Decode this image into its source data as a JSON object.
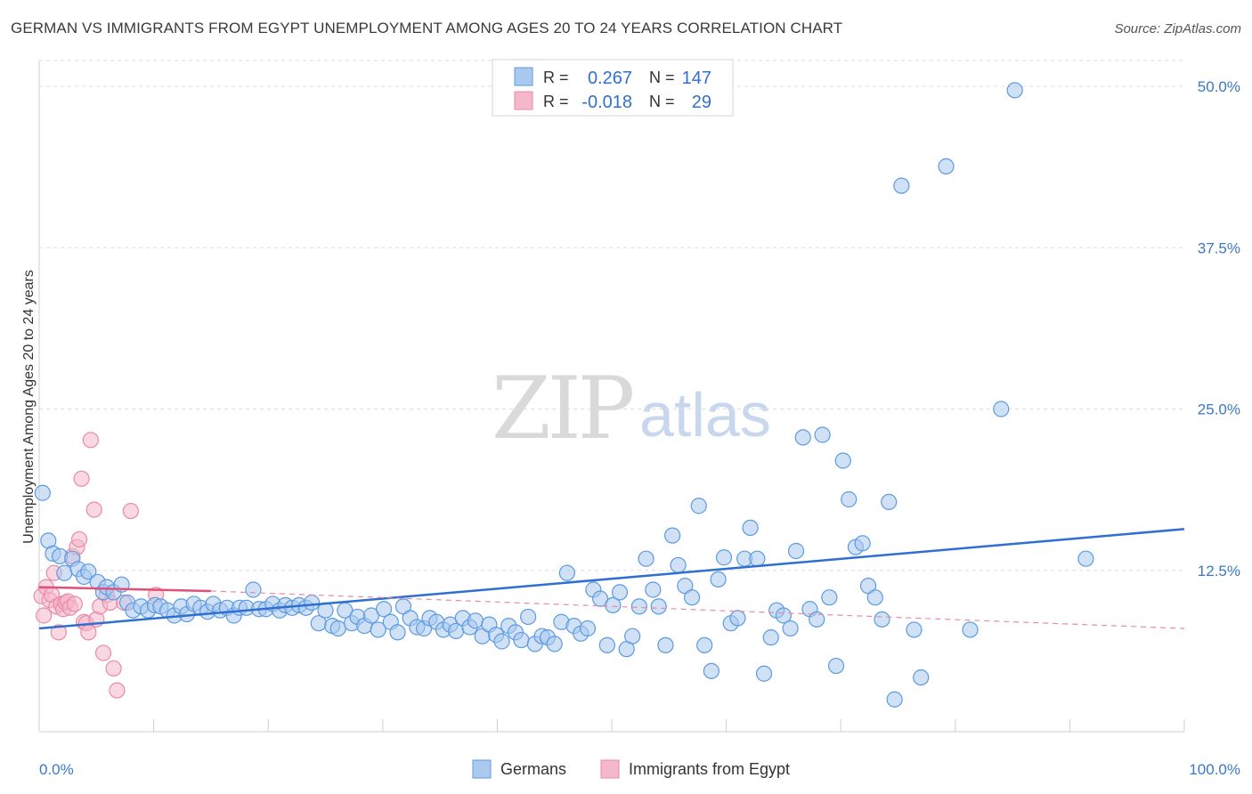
{
  "chart_data": {
    "type": "scatter",
    "title": "GERMAN VS IMMIGRANTS FROM EGYPT UNEMPLOYMENT AMONG AGES 20 TO 24 YEARS CORRELATION CHART",
    "source": "Source: ZipAtlas.com",
    "ylabel": "Unemployment Among Ages 20 to 24 years",
    "xlim": [
      0,
      100
    ],
    "ylim": [
      0,
      52.5
    ],
    "y_ticks": [
      "12.5%",
      "25.0%",
      "37.5%",
      "50.0%"
    ],
    "y_tick_values": [
      12.5,
      25.0,
      37.5,
      50.0
    ],
    "x_tick_labels": [
      "0.0%",
      "100.0%"
    ],
    "grid": "horizontal dashed",
    "watermark": {
      "zip": "ZIP",
      "atlas": "atlas"
    },
    "legend_box": {
      "rows": [
        {
          "r_label": "R =",
          "r_value": "0.267",
          "n_label": "N =",
          "n_value": "147"
        },
        {
          "r_label": "R =",
          "r_value": "-0.018",
          "n_label": "N =",
          "n_value": "29"
        }
      ]
    },
    "series": [
      {
        "name": "Germans",
        "color": "#5b9be0",
        "fill": "#a9c9ef",
        "trend": {
          "x": [
            0,
            100
          ],
          "y": [
            8.0,
            15.7
          ],
          "style": "solid",
          "color": "#2e6fd1"
        },
        "points": [
          [
            0.3,
            18.5
          ],
          [
            0.8,
            14.8
          ],
          [
            1.2,
            13.8
          ],
          [
            1.8,
            13.6
          ],
          [
            2.2,
            12.3
          ],
          [
            2.9,
            13.4
          ],
          [
            3.4,
            12.6
          ],
          [
            3.9,
            12.0
          ],
          [
            4.3,
            12.4
          ],
          [
            5.1,
            11.6
          ],
          [
            5.6,
            10.8
          ],
          [
            5.9,
            11.2
          ],
          [
            6.5,
            10.8
          ],
          [
            7.2,
            11.4
          ],
          [
            7.7,
            10.0
          ],
          [
            8.2,
            9.4
          ],
          [
            8.9,
            9.7
          ],
          [
            9.5,
            9.4
          ],
          [
            10.1,
            9.8
          ],
          [
            10.6,
            9.7
          ],
          [
            11.2,
            9.4
          ],
          [
            11.8,
            9.0
          ],
          [
            12.4,
            9.7
          ],
          [
            12.9,
            9.1
          ],
          [
            13.5,
            9.9
          ],
          [
            14.1,
            9.6
          ],
          [
            14.7,
            9.3
          ],
          [
            15.2,
            9.9
          ],
          [
            15.8,
            9.4
          ],
          [
            16.4,
            9.6
          ],
          [
            17.0,
            9.0
          ],
          [
            17.5,
            9.6
          ],
          [
            18.1,
            9.6
          ],
          [
            18.7,
            11.0
          ],
          [
            19.2,
            9.5
          ],
          [
            19.8,
            9.5
          ],
          [
            20.4,
            9.9
          ],
          [
            21.0,
            9.4
          ],
          [
            21.5,
            9.8
          ],
          [
            22.1,
            9.6
          ],
          [
            22.7,
            9.8
          ],
          [
            23.3,
            9.6
          ],
          [
            23.8,
            10.0
          ],
          [
            24.4,
            8.4
          ],
          [
            25.0,
            9.4
          ],
          [
            25.6,
            8.2
          ],
          [
            26.1,
            8.0
          ],
          [
            26.7,
            9.4
          ],
          [
            27.3,
            8.4
          ],
          [
            27.8,
            8.9
          ],
          [
            28.4,
            8.2
          ],
          [
            29.0,
            9.0
          ],
          [
            29.6,
            7.9
          ],
          [
            30.1,
            9.5
          ],
          [
            30.7,
            8.5
          ],
          [
            31.3,
            7.7
          ],
          [
            31.8,
            9.7
          ],
          [
            32.4,
            8.8
          ],
          [
            33.0,
            8.1
          ],
          [
            33.6,
            8.0
          ],
          [
            34.1,
            8.8
          ],
          [
            34.7,
            8.5
          ],
          [
            35.3,
            7.9
          ],
          [
            35.9,
            8.3
          ],
          [
            36.4,
            7.8
          ],
          [
            37.0,
            8.8
          ],
          [
            37.6,
            8.1
          ],
          [
            38.1,
            8.6
          ],
          [
            38.7,
            7.4
          ],
          [
            39.3,
            8.3
          ],
          [
            39.9,
            7.5
          ],
          [
            40.4,
            7.0
          ],
          [
            41.0,
            8.2
          ],
          [
            41.6,
            7.7
          ],
          [
            42.1,
            7.1
          ],
          [
            42.7,
            8.9
          ],
          [
            43.3,
            6.8
          ],
          [
            43.9,
            7.4
          ],
          [
            44.4,
            7.3
          ],
          [
            45.0,
            6.8
          ],
          [
            45.6,
            8.5
          ],
          [
            46.1,
            12.3
          ],
          [
            46.7,
            8.2
          ],
          [
            47.3,
            7.6
          ],
          [
            47.9,
            8.0
          ],
          [
            48.4,
            11.0
          ],
          [
            49.0,
            10.3
          ],
          [
            49.6,
            6.7
          ],
          [
            50.1,
            9.8
          ],
          [
            50.7,
            10.8
          ],
          [
            51.3,
            6.4
          ],
          [
            51.8,
            7.4
          ],
          [
            52.4,
            9.7
          ],
          [
            53.0,
            13.4
          ],
          [
            53.6,
            11.0
          ],
          [
            54.1,
            9.7
          ],
          [
            54.7,
            6.7
          ],
          [
            55.3,
            15.2
          ],
          [
            55.8,
            12.9
          ],
          [
            56.4,
            11.3
          ],
          [
            57.0,
            10.4
          ],
          [
            57.6,
            17.5
          ],
          [
            58.1,
            6.7
          ],
          [
            58.7,
            4.7
          ],
          [
            59.3,
            11.8
          ],
          [
            59.8,
            13.5
          ],
          [
            60.4,
            8.4
          ],
          [
            61.0,
            8.8
          ],
          [
            61.6,
            13.4
          ],
          [
            62.1,
            15.8
          ],
          [
            62.7,
            13.4
          ],
          [
            63.3,
            4.5
          ],
          [
            63.9,
            7.3
          ],
          [
            64.4,
            9.4
          ],
          [
            65.0,
            9.0
          ],
          [
            65.6,
            8.0
          ],
          [
            66.1,
            14.0
          ],
          [
            66.7,
            22.8
          ],
          [
            67.3,
            9.5
          ],
          [
            67.9,
            8.7
          ],
          [
            68.4,
            23.0
          ],
          [
            69.0,
            10.4
          ],
          [
            69.6,
            5.1
          ],
          [
            70.2,
            21.0
          ],
          [
            70.7,
            18.0
          ],
          [
            71.3,
            14.3
          ],
          [
            71.9,
            14.6
          ],
          [
            72.4,
            11.3
          ],
          [
            73.0,
            10.4
          ],
          [
            73.6,
            8.7
          ],
          [
            74.2,
            17.8
          ],
          [
            74.7,
            2.5
          ],
          [
            75.3,
            42.3
          ],
          [
            76.4,
            7.9
          ],
          [
            77.0,
            4.2
          ],
          [
            79.2,
            43.8
          ],
          [
            81.3,
            7.9
          ],
          [
            84.0,
            25.0
          ],
          [
            85.2,
            49.7
          ],
          [
            91.4,
            13.4
          ]
        ]
      },
      {
        "name": "Immigrants from Egypt",
        "color": "#e88aa8",
        "fill": "#f5b8cb",
        "trend": {
          "x": [
            0,
            15
          ],
          "y": [
            11.2,
            10.9
          ],
          "style": "solid",
          "color": "#e0507a"
        },
        "trend_extended": {
          "x": [
            15,
            100
          ],
          "y": [
            10.9,
            8.0
          ],
          "style": "dashed",
          "color": "#e889a6"
        },
        "points": [
          [
            0.2,
            10.5
          ],
          [
            0.4,
            9.0
          ],
          [
            0.6,
            11.2
          ],
          [
            0.9,
            10.2
          ],
          [
            1.1,
            10.6
          ],
          [
            1.3,
            12.3
          ],
          [
            1.5,
            9.7
          ],
          [
            1.7,
            7.7
          ],
          [
            1.9,
            9.9
          ],
          [
            2.1,
            9.5
          ],
          [
            2.3,
            10.0
          ],
          [
            2.5,
            10.1
          ],
          [
            2.7,
            9.6
          ],
          [
            2.9,
            13.6
          ],
          [
            3.1,
            9.9
          ],
          [
            3.3,
            14.3
          ],
          [
            3.5,
            14.9
          ],
          [
            3.7,
            19.6
          ],
          [
            3.9,
            8.5
          ],
          [
            4.1,
            8.4
          ],
          [
            4.3,
            7.7
          ],
          [
            4.5,
            22.6
          ],
          [
            4.8,
            17.2
          ],
          [
            5.0,
            8.7
          ],
          [
            5.3,
            9.7
          ],
          [
            5.6,
            6.1
          ],
          [
            5.9,
            10.6
          ],
          [
            6.2,
            10.0
          ],
          [
            6.5,
            4.9
          ],
          [
            6.8,
            3.2
          ],
          [
            7.4,
            10.0
          ],
          [
            8.0,
            17.1
          ],
          [
            10.2,
            10.6
          ]
        ]
      }
    ]
  }
}
